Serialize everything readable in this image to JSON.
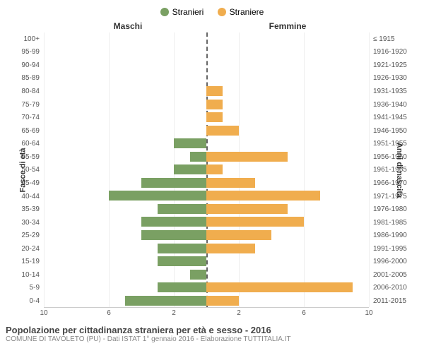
{
  "legend": {
    "male": {
      "label": "Stranieri",
      "color": "#7aa063"
    },
    "female": {
      "label": "Straniere",
      "color": "#f0ad4e"
    }
  },
  "headers": {
    "male": "Maschi",
    "female": "Femmine"
  },
  "axis": {
    "left_title": "Fasce di età",
    "right_title": "Anni di nascita",
    "max": 10,
    "ticks_left": [
      10,
      6,
      2
    ],
    "ticks_right": [
      2,
      6,
      10
    ],
    "grid_color": "#eeeeee",
    "centerline_color": "#666666",
    "bg": "#ffffff"
  },
  "age_groups": [
    {
      "age": "100+",
      "birth": "≤ 1915",
      "m": 0,
      "f": 0
    },
    {
      "age": "95-99",
      "birth": "1916-1920",
      "m": 0,
      "f": 0
    },
    {
      "age": "90-94",
      "birth": "1921-1925",
      "m": 0,
      "f": 0
    },
    {
      "age": "85-89",
      "birth": "1926-1930",
      "m": 0,
      "f": 0
    },
    {
      "age": "80-84",
      "birth": "1931-1935",
      "m": 0,
      "f": 1
    },
    {
      "age": "75-79",
      "birth": "1936-1940",
      "m": 0,
      "f": 1
    },
    {
      "age": "70-74",
      "birth": "1941-1945",
      "m": 0,
      "f": 1
    },
    {
      "age": "65-69",
      "birth": "1946-1950",
      "m": 0,
      "f": 2
    },
    {
      "age": "60-64",
      "birth": "1951-1955",
      "m": 2,
      "f": 0
    },
    {
      "age": "55-59",
      "birth": "1956-1960",
      "m": 1,
      "f": 5
    },
    {
      "age": "50-54",
      "birth": "1961-1965",
      "m": 2,
      "f": 1
    },
    {
      "age": "45-49",
      "birth": "1966-1970",
      "m": 4,
      "f": 3
    },
    {
      "age": "40-44",
      "birth": "1971-1975",
      "m": 6,
      "f": 7
    },
    {
      "age": "35-39",
      "birth": "1976-1980",
      "m": 3,
      "f": 5
    },
    {
      "age": "30-34",
      "birth": "1981-1985",
      "m": 4,
      "f": 6
    },
    {
      "age": "25-29",
      "birth": "1986-1990",
      "m": 4,
      "f": 4
    },
    {
      "age": "20-24",
      "birth": "1991-1995",
      "m": 3,
      "f": 3
    },
    {
      "age": "15-19",
      "birth": "1996-2000",
      "m": 3,
      "f": 0
    },
    {
      "age": "10-14",
      "birth": "2001-2005",
      "m": 1,
      "f": 0
    },
    {
      "age": "5-9",
      "birth": "2006-2010",
      "m": 3,
      "f": 9
    },
    {
      "age": "0-4",
      "birth": "2011-2015",
      "m": 5,
      "f": 2
    }
  ],
  "title": "Popolazione per cittadinanza straniera per età e sesso - 2016",
  "subtitle": "COMUNE DI TAVOLETO (PU) - Dati ISTAT 1° gennaio 2016 - Elaborazione TUTTITALIA.IT"
}
